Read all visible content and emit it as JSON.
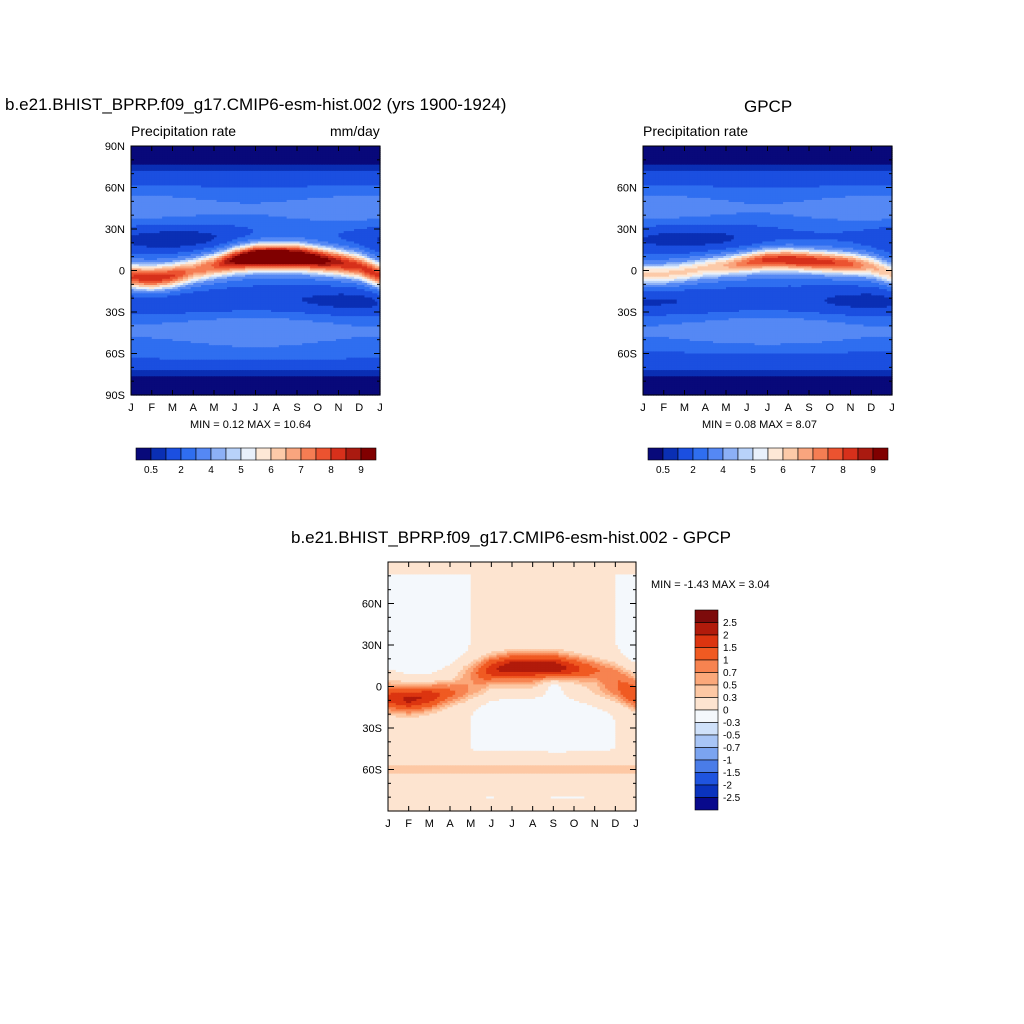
{
  "panels": [
    {
      "title": "b.e21.BHIST_BPRP.f09_g17.CMIP6-esm-hist.002 (yrs 1900-1924)",
      "left_label": "Precipitation rate",
      "right_label": "mm/day",
      "stats": "MIN =   0.12 MAX =  10.64",
      "y_ticks": [
        "90N",
        "60N",
        "30N",
        "0",
        "30S",
        "60S",
        "90S"
      ],
      "x_ticks": [
        "J",
        "F",
        "M",
        "A",
        "M",
        "J",
        "J",
        "A",
        "S",
        "O",
        "N",
        "D",
        "J"
      ]
    },
    {
      "title": "GPCP",
      "left_label": "Precipitation rate",
      "right_label": "",
      "stats": "MIN =   0.08 MAX =   8.07",
      "y_ticks": [
        "60N",
        "30N",
        "0",
        "30S",
        "60S"
      ],
      "x_ticks": [
        "J",
        "F",
        "M",
        "A",
        "M",
        "J",
        "J",
        "A",
        "S",
        "O",
        "N",
        "D",
        "J"
      ]
    },
    {
      "title": "b.e21.BHIST_BPRP.f09_g17.CMIP6-esm-hist.002 - GPCP",
      "left_label": "",
      "right_label": "",
      "stats": "MIN =  -1.43 MAX =   3.04",
      "y_ticks": [
        "60N",
        "30N",
        "0",
        "30S",
        "60S"
      ],
      "x_ticks": [
        "J",
        "F",
        "M",
        "A",
        "M",
        "J",
        "J",
        "A",
        "S",
        "O",
        "N",
        "D",
        "J"
      ]
    }
  ],
  "colorbar_main": {
    "labels": [
      "0.5",
      "2",
      "4",
      "5",
      "6",
      "7",
      "8",
      "9"
    ],
    "colors": [
      "#08097a",
      "#0a2fb4",
      "#1b4fe0",
      "#2f6ef0",
      "#5588f4",
      "#8cb0f6",
      "#b8d2fa",
      "#e8f0fb",
      "#fde8d6",
      "#fccaa8",
      "#f9a57e",
      "#f57d53",
      "#ec5330",
      "#d7301b",
      "#aa1a10",
      "#800000"
    ]
  },
  "colorbar_diff": {
    "labels": [
      "2.5",
      "2",
      "1.5",
      "1",
      "0.7",
      "0.5",
      "0.3",
      "0",
      "-0.3",
      "-0.5",
      "-0.7",
      "-1",
      "-1.5",
      "-2",
      "-2.5"
    ],
    "colors": [
      "#7d0b0b",
      "#b11b0b",
      "#dc3510",
      "#f05a22",
      "#f78350",
      "#fba87a",
      "#fdc8a4",
      "#fde4d0",
      "#f4f8fc",
      "#cfe1fa",
      "#a8c5f6",
      "#7ba4f0",
      "#4a7ce8",
      "#1f54df",
      "#0a33be",
      "#08098c"
    ]
  },
  "chart_data": [
    {
      "type": "heatmap",
      "title": "b.e21.BHIST_BPRP.f09_g17.CMIP6-esm-hist.002 (yrs 1900-1924)",
      "subtitle_left": "Precipitation rate",
      "units": "mm/day",
      "x": [
        "J",
        "F",
        "M",
        "A",
        "M",
        "J",
        "J",
        "A",
        "S",
        "O",
        "N",
        "D",
        "J"
      ],
      "y_range": [
        -90,
        90
      ],
      "min": 0.12,
      "max": 10.64,
      "levels": [
        0.5,
        1,
        2,
        3,
        4,
        4.5,
        5,
        5.5,
        6,
        6.5,
        7,
        7.5,
        8,
        8.5,
        9
      ],
      "itcz_lat_by_month": [
        -5,
        -6,
        -4,
        0,
        4,
        8,
        10,
        10,
        10,
        8,
        6,
        3,
        -4
      ],
      "itcz_peak_by_month": [
        7.5,
        8,
        7.5,
        6.5,
        7,
        9,
        10.5,
        10.6,
        10,
        9,
        8,
        7.5,
        7.5
      ]
    },
    {
      "type": "heatmap",
      "title": "GPCP",
      "subtitle_left": "Precipitation rate",
      "x": [
        "J",
        "F",
        "M",
        "A",
        "M",
        "J",
        "J",
        "A",
        "S",
        "O",
        "N",
        "D",
        "J"
      ],
      "y_range": [
        -90,
        90
      ],
      "min": 0.08,
      "max": 8.07,
      "levels": [
        0.5,
        1,
        2,
        3,
        4,
        4.5,
        5,
        5.5,
        6,
        6.5,
        7,
        7.5,
        8,
        8.5,
        9
      ],
      "itcz_lat_by_month": [
        -3,
        -3,
        -1,
        2,
        4,
        6,
        8,
        8,
        7,
        6,
        5,
        3,
        -3
      ],
      "itcz_peak_by_month": [
        5.5,
        5.5,
        5.5,
        5.5,
        6,
        7,
        7.8,
        8,
        7.8,
        7.5,
        7,
        6,
        5.5
      ]
    },
    {
      "type": "heatmap",
      "title": "b.e21.BHIST_BPRP.f09_g17.CMIP6-esm-hist.002 - GPCP",
      "x": [
        "J",
        "F",
        "M",
        "A",
        "M",
        "J",
        "J",
        "A",
        "S",
        "O",
        "N",
        "D",
        "J"
      ],
      "y_range": [
        -90,
        90
      ],
      "min": -1.43,
      "max": 3.04,
      "levels": [
        -2.5,
        -2,
        -1.5,
        -1,
        -0.7,
        -0.5,
        -0.3,
        0,
        0.3,
        0.5,
        0.7,
        1,
        1.5,
        2,
        2.5
      ]
    }
  ]
}
